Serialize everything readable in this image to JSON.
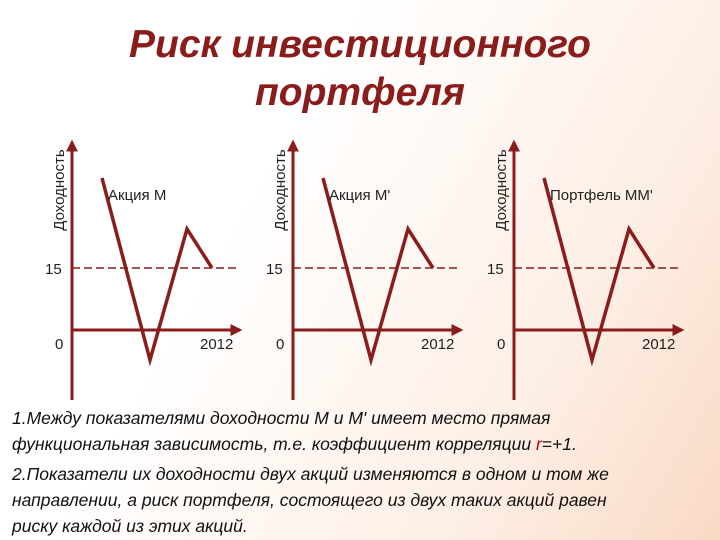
{
  "title": "Риск инвестиционного портфеля",
  "panels": [
    {
      "axis_label": "Доходность",
      "series_label": "Акция М",
      "level_label": "15",
      "origin_label": "0",
      "end_label": "2012"
    },
    {
      "axis_label": "Доходность",
      "series_label": "Акция М'",
      "level_label": "15",
      "origin_label": "0",
      "end_label": "2012"
    },
    {
      "axis_label": "Доходность",
      "series_label": "Портфель ММ'",
      "level_label": "15",
      "origin_label": "0",
      "end_label": "2012"
    }
  ],
  "paragraphs": [
    [
      "1.Между показателями доходности М и М' имеет место прямая",
      "функциональная зависимость, т.е. коэффициент корреляции ",
      "r",
      "=+1."
    ],
    [
      "2.Показатели их доходности двух акций изменяются в одном и том же",
      "направлении, а риск портфеля, состоящего из двух таких акций равен",
      "риску каждой из этих акций."
    ]
  ]
}
